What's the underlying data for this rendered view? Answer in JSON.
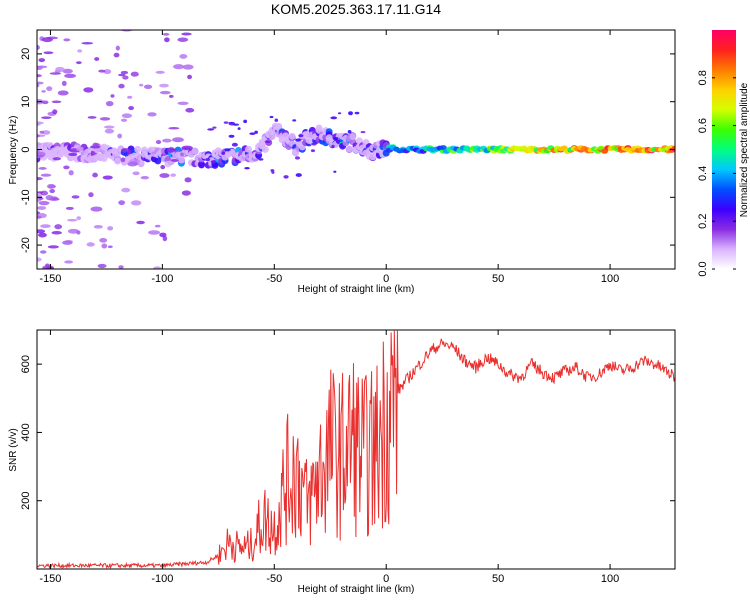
{
  "title": "KOM5.2025.363.17.11.G14",
  "chart_data": [
    {
      "type": "heatmap",
      "title": "KOM5.2025.363.17.11.G14",
      "xlabel": "Height of straight line (km)",
      "ylabel": "Frequency (Hz)",
      "xlim": [
        -156,
        129
      ],
      "ylim": [
        -25,
        25
      ],
      "xticks": [
        -150,
        -100,
        -50,
        0,
        50,
        100
      ],
      "yticks": [
        -20,
        -10,
        0,
        10,
        20
      ],
      "colorbar": {
        "label": "Normalized spectral amplitude",
        "range": [
          0,
          1
        ],
        "ticks": [
          "0.0",
          "0.2",
          "0.4",
          "0.6",
          "0.8"
        ],
        "colors": [
          "#ffffff",
          "#d9b3ff",
          "#8a2be2",
          "#3b00ff",
          "#0050ff",
          "#00c8ff",
          "#00ff7f",
          "#3cff00",
          "#d4ff00",
          "#ffd000",
          "#ff7a00",
          "#ff2020",
          "#ff0066"
        ]
      },
      "ridge": {
        "x": [
          -155,
          -140,
          -125,
          -110,
          -100,
          -90,
          -80,
          -70,
          -60,
          -55,
          -50,
          -45,
          -40,
          -35,
          -30,
          -25,
          -20,
          -15,
          -10,
          -5,
          0,
          10,
          20,
          30,
          40,
          50,
          60,
          70,
          80,
          90,
          100,
          110,
          120,
          129
        ],
        "freq": [
          -0.5,
          -0.5,
          -1.0,
          -1.5,
          -1.5,
          -1.5,
          -2.0,
          -1.5,
          -1.0,
          0.5,
          4.0,
          2.5,
          0.5,
          2.5,
          3.0,
          2.5,
          1.5,
          1.5,
          0.5,
          -0.5,
          0.3,
          0,
          0,
          0,
          0,
          0,
          0,
          0,
          0,
          0,
          0,
          0,
          0,
          0
        ],
        "amplitude": [
          0.2,
          0.2,
          0.25,
          0.3,
          0.35,
          0.4,
          0.35,
          0.4,
          0.35,
          0.3,
          0.3,
          0.3,
          0.3,
          0.3,
          0.35,
          0.35,
          0.45,
          0.35,
          0.3,
          0.3,
          0.5,
          0.5,
          0.55,
          0.6,
          0.65,
          0.7,
          0.8,
          0.85,
          0.9,
          0.9,
          0.95,
          0.95,
          0.95,
          0.95
        ]
      }
    },
    {
      "type": "line",
      "xlabel": "Height of straight line (km)",
      "ylabel": "SNR (v/v)",
      "xlim": [
        -156,
        129
      ],
      "ylim": [
        0,
        700
      ],
      "xticks": [
        -150,
        -100,
        -50,
        0,
        50,
        100
      ],
      "yticks": [
        200,
        400,
        600
      ],
      "color": "#e8302e",
      "series": [
        {
          "name": "SNR",
          "x": [
            -156,
            -140,
            -120,
            -100,
            -90,
            -80,
            -75,
            -70,
            -65,
            -60,
            -55,
            -50,
            -45,
            -40,
            -35,
            -30,
            -25,
            -20,
            -15,
            -10,
            -5,
            0,
            5,
            10,
            15,
            20,
            25,
            30,
            35,
            40,
            45,
            50,
            55,
            60,
            65,
            70,
            75,
            80,
            85,
            90,
            95,
            100,
            105,
            110,
            115,
            120,
            125,
            129
          ],
          "y": [
            10,
            10,
            10,
            10,
            15,
            20,
            40,
            80,
            60,
            70,
            150,
            120,
            250,
            300,
            180,
            280,
            350,
            330,
            380,
            330,
            340,
            450,
            520,
            560,
            600,
            640,
            660,
            650,
            610,
            590,
            620,
            600,
            570,
            560,
            600,
            575,
            560,
            580,
            590,
            560,
            570,
            600,
            580,
            590,
            610,
            600,
            580,
            560
          ]
        }
      ]
    }
  ]
}
